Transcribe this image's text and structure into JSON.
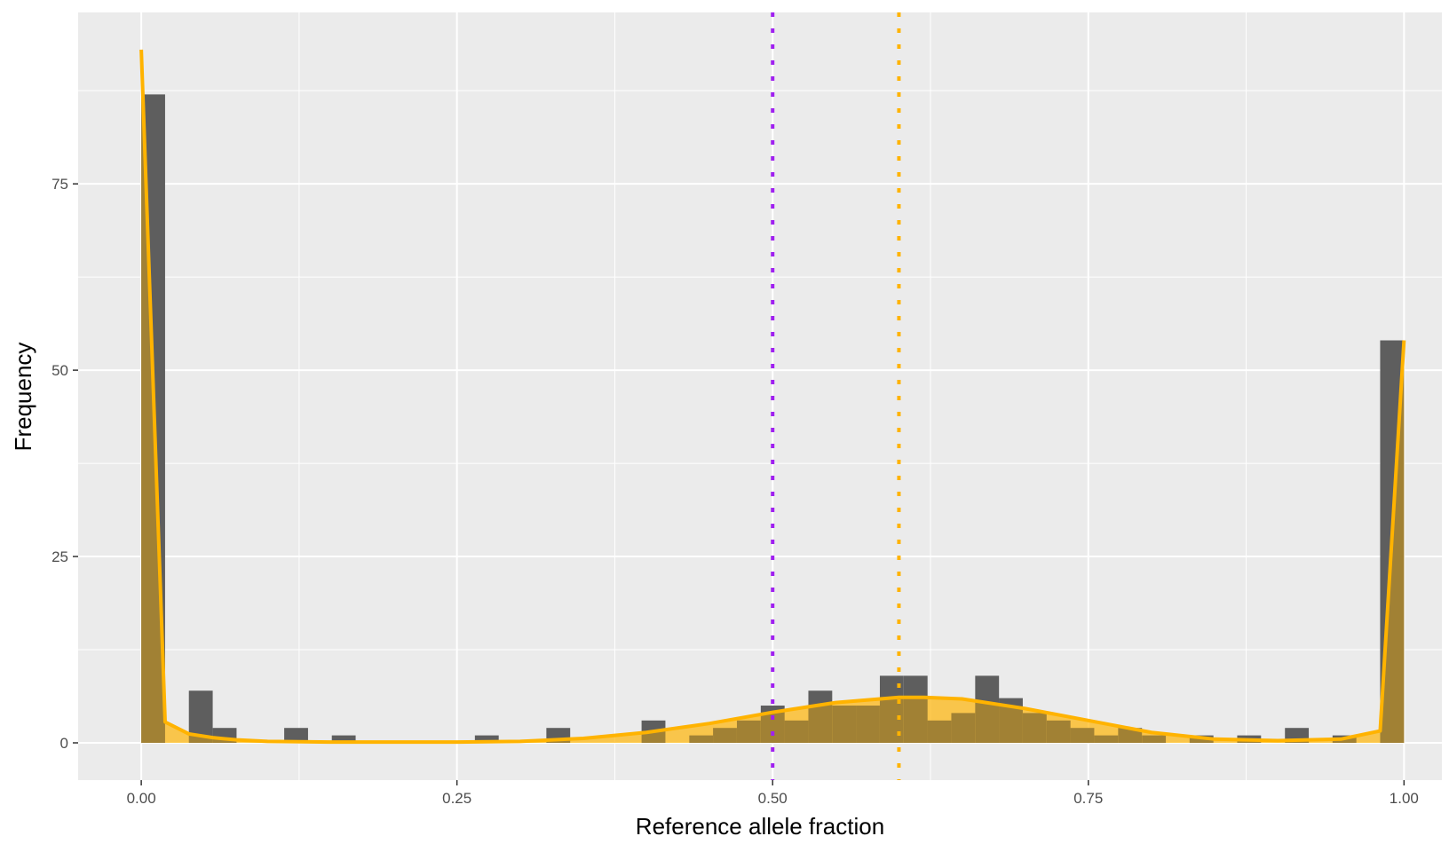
{
  "chart_data": {
    "type": "bar",
    "xlabel": "Reference allele fraction",
    "ylabel": "Frequency",
    "xlim": [
      -0.05,
      1.03
    ],
    "ylim": [
      -5,
      98
    ],
    "x_ticks": [
      0.0,
      0.25,
      0.5,
      0.75,
      1.0
    ],
    "x_tick_labels": [
      "0.00",
      "0.25",
      "0.50",
      "0.75",
      "1.00"
    ],
    "y_ticks": [
      0,
      25,
      50,
      75
    ],
    "y_tick_labels": [
      "0",
      "25",
      "50",
      "75"
    ],
    "grid": true,
    "bin_width": 0.01887,
    "histogram": {
      "x_start": [
        0.0,
        0.0377,
        0.0566,
        0.1132,
        0.1509,
        0.2642,
        0.3208,
        0.3962,
        0.434,
        0.4528,
        0.4717,
        0.4906,
        0.5094,
        0.5283,
        0.5472,
        0.566,
        0.5849,
        0.6038,
        0.6226,
        0.6415,
        0.6604,
        0.6792,
        0.6981,
        0.717,
        0.7358,
        0.7547,
        0.7736,
        0.7925,
        0.8302,
        0.8679,
        0.9057,
        0.9434,
        0.9811
      ],
      "values": [
        87,
        7,
        2,
        2,
        1,
        1,
        2,
        3,
        1,
        2,
        3,
        5,
        3,
        7,
        5,
        5,
        9,
        9,
        3,
        4,
        9,
        6,
        4,
        3,
        2,
        1,
        2,
        1,
        1,
        1,
        2,
        1,
        54
      ]
    },
    "density_curve": {
      "color": "#FFB300",
      "x": [
        0.0,
        0.0189,
        0.0377,
        0.0566,
        0.0755,
        0.1,
        0.15,
        0.2,
        0.25,
        0.3,
        0.35,
        0.4,
        0.45,
        0.5,
        0.55,
        0.6,
        0.62,
        0.65,
        0.7,
        0.75,
        0.8,
        0.85,
        0.9,
        0.95,
        0.9811,
        1.0
      ],
      "y": [
        93,
        2.8,
        1.2,
        0.7,
        0.4,
        0.2,
        0.1,
        0.1,
        0.1,
        0.2,
        0.6,
        1.4,
        2.6,
        4.1,
        5.4,
        6.1,
        6.1,
        5.9,
        4.6,
        3.0,
        1.4,
        0.5,
        0.3,
        0.5,
        1.6,
        54
      ]
    },
    "reference_lines": [
      {
        "x": 0.5,
        "color": "#A020F0",
        "style": "dotted"
      },
      {
        "x": 0.6,
        "color": "#FFB300",
        "style": "dotted"
      }
    ],
    "colors": {
      "panel_background": "#EBEBEB",
      "grid": "#FFFFFF",
      "bar_fill": "#595959",
      "density_fill": "#FFB300"
    }
  }
}
